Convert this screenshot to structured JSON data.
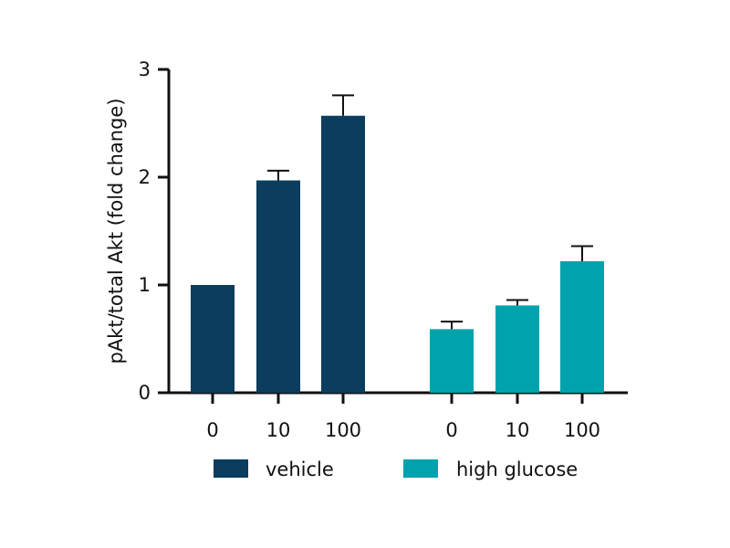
{
  "chart_data": {
    "type": "bar",
    "title": "",
    "ylabel": "pAkt/total Akt (fold change)",
    "xlabel": "",
    "ylim": [
      0,
      3
    ],
    "yticks": [
      0,
      1,
      2,
      3
    ],
    "grid": false,
    "legend_position": "bottom",
    "groups": [
      {
        "name": "vehicle",
        "color": "#0b3d5e",
        "categories": [
          "0",
          "10",
          "100"
        ],
        "values": [
          1.0,
          1.97,
          2.57
        ],
        "errors": [
          0,
          0.09,
          0.19
        ]
      },
      {
        "name": "high glucose",
        "color": "#00a3ad",
        "categories": [
          "0",
          "10",
          "100"
        ],
        "values": [
          0.59,
          0.81,
          1.22
        ],
        "errors": [
          0.07,
          0.05,
          0.14
        ]
      }
    ]
  }
}
